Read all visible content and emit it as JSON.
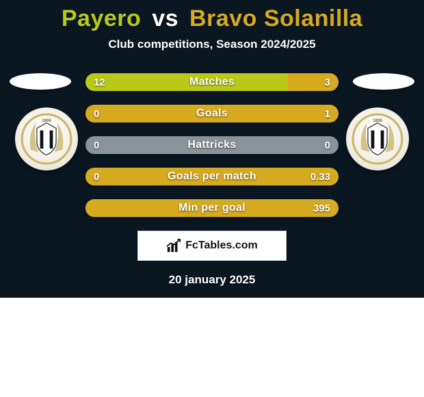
{
  "title": {
    "player1": "Payero",
    "vs": "vs",
    "player2": "Bravo Solanilla",
    "player1_color": "#b9c917",
    "player2_color": "#d6ab1f"
  },
  "subtitle": "Club competitions, Season 2024/2025",
  "flag_colors": {
    "left": "#ffffff",
    "right": "#ffffff"
  },
  "bars": {
    "track_color": "#8a929a",
    "left_fill": "#b9c917",
    "right_fill": "#d6ab1f",
    "rows": [
      {
        "label": "Matches",
        "left_val": "12",
        "right_val": "3",
        "left_pct": 80,
        "right_pct": 20
      },
      {
        "label": "Goals",
        "left_val": "0",
        "right_val": "1",
        "left_pct": 0,
        "right_pct": 100
      },
      {
        "label": "Hattricks",
        "left_val": "0",
        "right_val": "0",
        "left_pct": 0,
        "right_pct": 0
      },
      {
        "label": "Goals per match",
        "left_val": "0",
        "right_val": "0.33",
        "left_pct": 0,
        "right_pct": 100
      },
      {
        "label": "Min per goal",
        "left_val": "",
        "right_val": "395",
        "left_pct": 0,
        "right_pct": 100
      }
    ]
  },
  "brand": "FcTables.com",
  "date": "20 january 2025",
  "background": {
    "top_color": "#0a1720",
    "bottom_color": "#ffffff",
    "split_pct": 75
  }
}
